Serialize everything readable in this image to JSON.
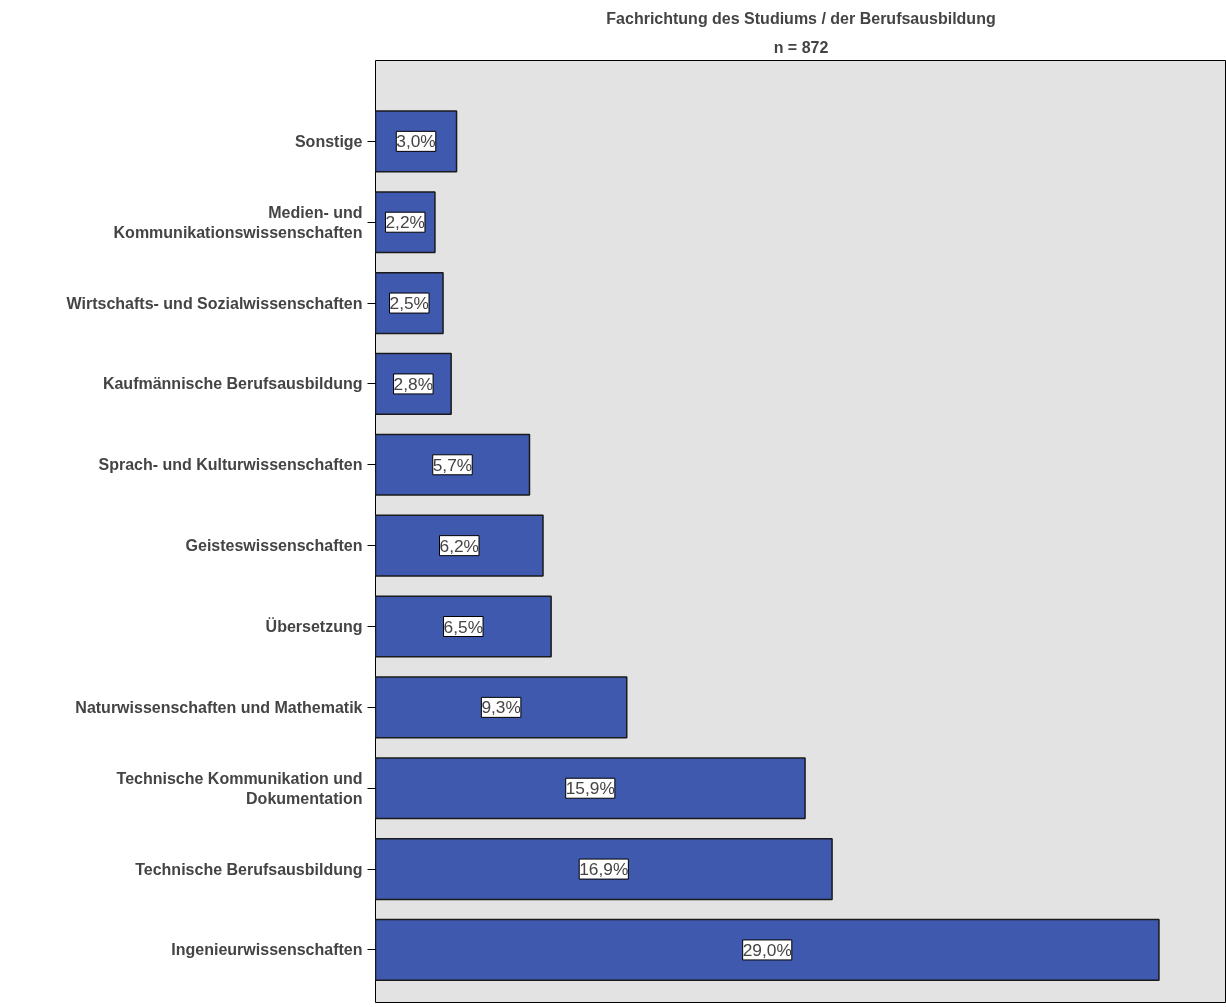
{
  "chart_data": {
    "type": "bar",
    "orientation": "horizontal",
    "title": "Fachrichtung des Studiums / der Berufsausbildung",
    "subtitle": "n = 872",
    "categories": [
      "Sonstige",
      "Medien- und\nKommunikationswissenschaften",
      "Wirtschafts- und Sozialwissenschaften",
      "Kaufmännische Berufsausbildung",
      "Sprach- und Kulturwissenschaften",
      "Geisteswissenschaften",
      "Übersetzung",
      "Naturwissenschaften und Mathematik",
      "Technische Kommunikation und\nDokumentation",
      "Technische Berufsausbildung",
      "Ingenieurwissenschaften"
    ],
    "values": [
      3.0,
      2.2,
      2.5,
      2.8,
      5.7,
      6.2,
      6.5,
      9.3,
      15.9,
      16.9,
      29.0
    ],
    "value_labels": [
      "3,0%",
      "2,2%",
      "2,5%",
      "2,8%",
      "5,7%",
      "6,2%",
      "6,5%",
      "9,3%",
      "15,9%",
      "16,9%",
      "29,0%"
    ],
    "color": "#3f59ae",
    "xlim": [
      0,
      31.5
    ],
    "grid": false,
    "tick_labels": "y"
  }
}
